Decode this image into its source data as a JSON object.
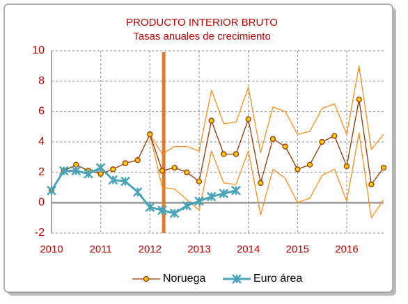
{
  "chart_data": {
    "type": "line",
    "title": "PRODUCTO INTERIOR BRUTO",
    "subtitle": "Tasas anuales de crecimiento",
    "x": [
      2010,
      2010.25,
      2010.5,
      2010.75,
      2011,
      2011.25,
      2011.5,
      2011.75,
      2012,
      2012.25,
      2012.5,
      2012.75,
      2013,
      2013.25,
      2013.5,
      2013.75,
      2014,
      2014.25,
      2014.5,
      2014.75,
      2015,
      2015.25,
      2015.5,
      2015.75,
      2016,
      2016.25,
      2016.5,
      2016.75
    ],
    "series": [
      {
        "color": "#ff8c1a",
        "marker": "none",
        "width": 1.3,
        "values": [
          null,
          null,
          null,
          null,
          null,
          null,
          null,
          null,
          4.5,
          3.2,
          3.7,
          3.7,
          3.4,
          7.4,
          5.2,
          5.3,
          7.6,
          3.3,
          6.3,
          6.0,
          4.5,
          4.7,
          6.2,
          6.5,
          4.5,
          9.0,
          3.5,
          4.5
        ]
      },
      {
        "color": "#ff8c1a",
        "marker": "none",
        "width": 1.3,
        "values": [
          null,
          null,
          null,
          null,
          null,
          null,
          null,
          null,
          4.5,
          1.0,
          0.9,
          0.2,
          -0.5,
          3.4,
          1.3,
          1.2,
          3.4,
          -0.8,
          2.2,
          1.6,
          0.0,
          0.3,
          1.8,
          2.2,
          0.1,
          4.6,
          -1.0,
          0.2
        ]
      },
      {
        "name": "Noruega",
        "color": "#993300",
        "marker": "circle",
        "width": 1.3,
        "values": [
          0.8,
          2.1,
          2.5,
          2.1,
          1.9,
          2.2,
          2.6,
          2.8,
          4.5,
          2.1,
          2.3,
          2.0,
          1.4,
          5.4,
          3.2,
          3.2,
          5.5,
          1.3,
          4.2,
          3.7,
          2.2,
          2.5,
          4.0,
          4.4,
          2.4,
          6.8,
          1.2,
          2.3
        ]
      },
      {
        "name": "Euro área",
        "color": "#4ba3b7",
        "marker": "asterisk",
        "width": 3,
        "values": [
          0.8,
          2.1,
          2.1,
          1.9,
          2.3,
          1.5,
          1.4,
          0.7,
          -0.3,
          -0.5,
          -0.7,
          -0.2,
          0.1,
          0.4,
          0.6,
          0.8,
          null,
          null,
          null,
          null,
          null,
          null,
          null,
          null,
          null,
          null,
          null,
          null
        ]
      }
    ],
    "xlim": [
      2010,
      2016.75
    ],
    "xticks": [
      2010,
      2011,
      2012,
      2013,
      2014,
      2015,
      2016
    ],
    "ylim": [
      -2,
      10
    ],
    "yticks": [
      -2,
      0,
      2,
      4,
      6,
      8,
      10
    ],
    "vline": {
      "x": 2012.28,
      "color": "#e07b2a"
    },
    "grid": true,
    "legend": "bottom"
  }
}
